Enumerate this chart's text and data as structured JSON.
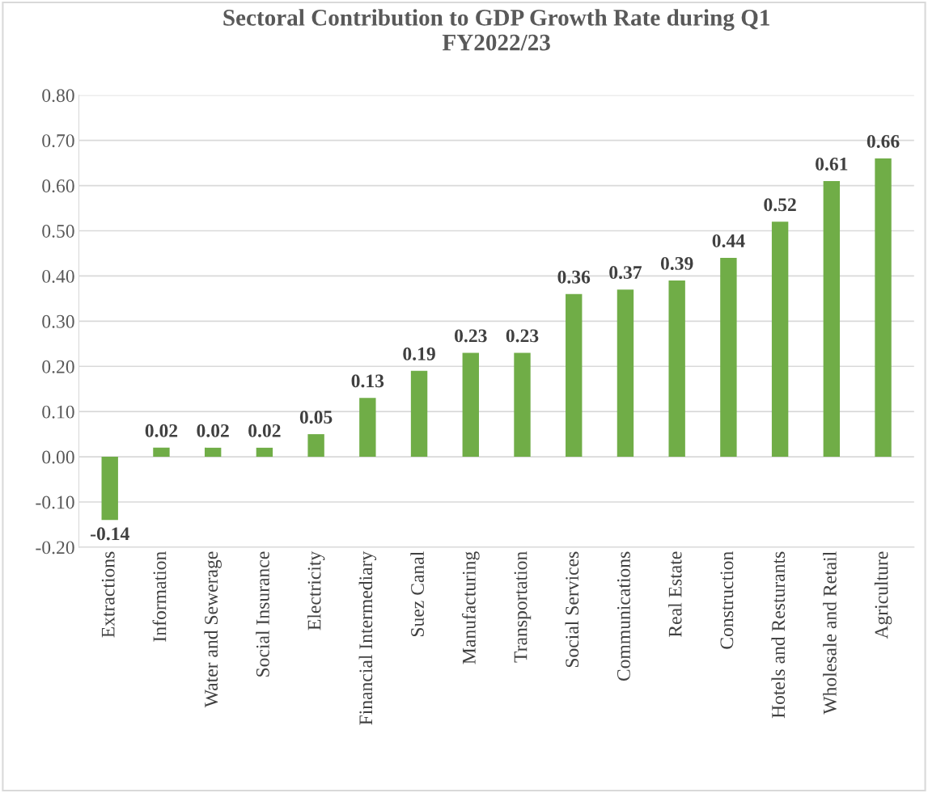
{
  "chart_data": {
    "type": "bar",
    "title": "Sectoral Contribution to GDP Growth Rate during Q1\nFY2022/23",
    "categories": [
      "Extractions",
      "Information",
      "Water and Sewerage",
      "Social Insurance",
      "Electricity",
      "Financial Intermediary",
      "Suez Canal",
      "Manufacturing",
      "Transportation",
      "Social Services",
      "Communications",
      "Real Estate",
      "Construction",
      "Hotels and Resturants",
      "Wholesale and Retail",
      "Agriculture"
    ],
    "values": [
      -0.14,
      0.02,
      0.02,
      0.02,
      0.05,
      0.13,
      0.19,
      0.23,
      0.23,
      0.36,
      0.37,
      0.39,
      0.44,
      0.52,
      0.61,
      0.66
    ],
    "value_labels": [
      "-0.14",
      "0.02",
      "0.02",
      "0.02",
      "0.05",
      "0.13",
      "0.19",
      "0.23",
      "0.23",
      "0.36",
      "0.37",
      "0.39",
      "0.44",
      "0.52",
      "0.61",
      "0.66"
    ],
    "color": "#70ad47",
    "ylim": [
      -0.2,
      0.8
    ],
    "yticks": [
      {
        "value": -0.2,
        "label": "-0.20"
      },
      {
        "value": -0.1,
        "label": "-0.10"
      },
      {
        "value": 0,
        "label": "0.00"
      },
      {
        "value": 0.1,
        "label": "0.10"
      },
      {
        "value": 0.2,
        "label": "0.20"
      },
      {
        "value": 0.3,
        "label": "0.30"
      },
      {
        "value": 0.4,
        "label": "0.40"
      },
      {
        "value": 0.5,
        "label": "0.50"
      },
      {
        "value": 0.6,
        "label": "0.60"
      },
      {
        "value": 0.7,
        "label": "0.70"
      },
      {
        "value": 0.8,
        "label": "0.80"
      }
    ],
    "grid": "y"
  }
}
